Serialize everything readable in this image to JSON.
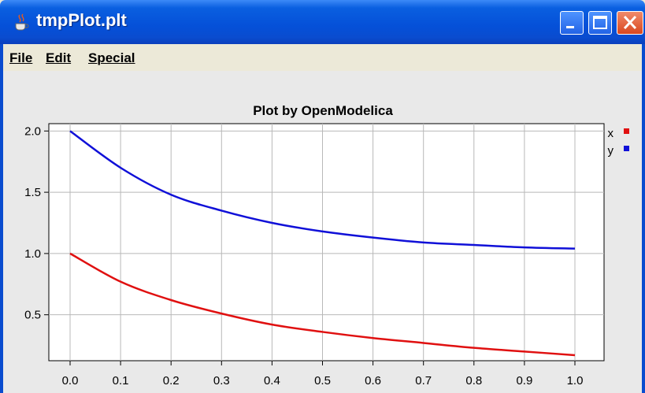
{
  "window": {
    "title": "tmpPlot.plt"
  },
  "menu": {
    "file": "File",
    "edit": "Edit",
    "special": "Special"
  },
  "chart_data": {
    "type": "line",
    "title": "Plot by OpenModelica",
    "xlabel": "",
    "ylabel": "",
    "xlim": [
      0.0,
      1.0
    ],
    "ylim": [
      0.125,
      2.06
    ],
    "xticks": [
      "0.0",
      "0.1",
      "0.2",
      "0.3",
      "0.4",
      "0.5",
      "0.6",
      "0.7",
      "0.8",
      "0.9",
      "1.0"
    ],
    "yticks": [
      "0.5",
      "1.0",
      "1.5",
      "2.0"
    ],
    "grid": true,
    "legend_position": "right",
    "x": [
      0.0,
      0.1,
      0.2,
      0.3,
      0.4,
      0.5,
      0.6,
      0.7,
      0.8,
      0.9,
      1.0
    ],
    "series": [
      {
        "name": "x",
        "color": "#e01010",
        "values": [
          1.0,
          0.77,
          0.62,
          0.51,
          0.42,
          0.36,
          0.31,
          0.27,
          0.23,
          0.2,
          0.17
        ]
      },
      {
        "name": "y",
        "color": "#1010d8",
        "values": [
          2.0,
          1.7,
          1.48,
          1.35,
          1.25,
          1.18,
          1.13,
          1.09,
          1.07,
          1.05,
          1.04
        ]
      }
    ]
  }
}
